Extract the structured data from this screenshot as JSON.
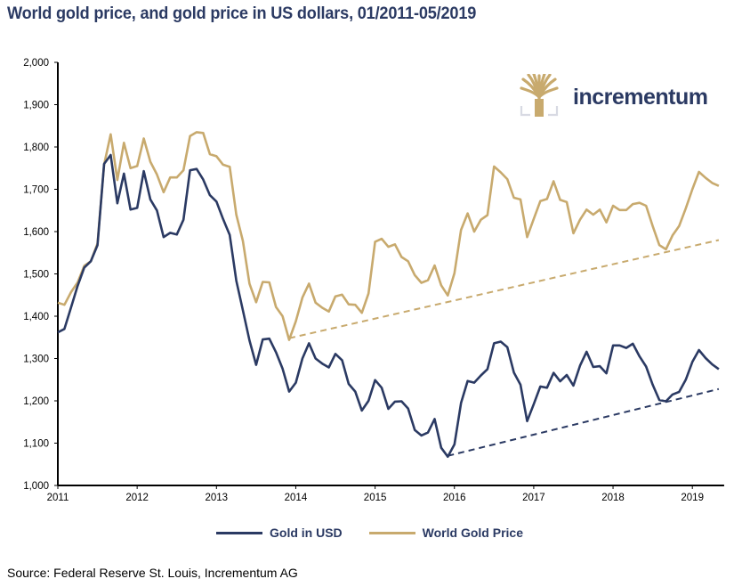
{
  "title": "World gold price, and gold price in US dollars, 01/2011-05/2019",
  "logo": {
    "text": "incrementum",
    "icon": "tree-icon"
  },
  "source": "Source: Federal Reserve St. Louis, Incrementum AG",
  "colors": {
    "usd": "#2b3a63",
    "world": "#c8aa6e",
    "title": "#2b3a63"
  },
  "chart_data": {
    "type": "line",
    "title": "World gold price, and gold price in US dollars, 01/2011-05/2019",
    "xlabel": "",
    "ylabel": "",
    "ylim": [
      1000,
      2000
    ],
    "yticks": [
      "1,000",
      "1,100",
      "1,200",
      "1,300",
      "1,400",
      "1,500",
      "1,600",
      "1,700",
      "1,800",
      "1,900",
      "2,000"
    ],
    "ytick_values": [
      1000,
      1100,
      1200,
      1300,
      1400,
      1500,
      1600,
      1700,
      1800,
      1900,
      2000
    ],
    "xticks": [
      "2011",
      "2012",
      "2013",
      "2014",
      "2015",
      "2016",
      "2017",
      "2018",
      "2019"
    ],
    "x_start": "2011-01",
    "x_end": "2019-05",
    "x_unit": "month",
    "grid": false,
    "legend_position": "bottom",
    "series": [
      {
        "name": "Gold in USD",
        "color": "#2b3a63",
        "values": [
          1362,
          1370,
          1421,
          1472,
          1515,
          1530,
          1568,
          1760,
          1781,
          1667,
          1737,
          1652,
          1656,
          1743,
          1676,
          1650,
          1587,
          1597,
          1593,
          1628,
          1745,
          1748,
          1723,
          1686,
          1671,
          1630,
          1592,
          1484,
          1414,
          1343,
          1285,
          1345,
          1347,
          1315,
          1276,
          1222,
          1243,
          1300,
          1336,
          1300,
          1288,
          1279,
          1311,
          1296,
          1240,
          1222,
          1177,
          1200,
          1249,
          1231,
          1181,
          1198,
          1199,
          1182,
          1131,
          1118,
          1125,
          1157,
          1089,
          1068,
          1097,
          1195,
          1247,
          1243,
          1260,
          1275,
          1336,
          1340,
          1327,
          1267,
          1238,
          1152,
          1192,
          1234,
          1231,
          1266,
          1246,
          1261,
          1236,
          1283,
          1316,
          1280,
          1282,
          1265,
          1331,
          1331,
          1325,
          1335,
          1305,
          1281,
          1238,
          1202,
          1199,
          1215,
          1221,
          1250,
          1292,
          1320,
          1301,
          1286,
          1275
        ]
      },
      {
        "name": "World Gold Price",
        "color": "#c8aa6e",
        "values": [
          1432,
          1427,
          1457,
          1480,
          1519,
          1530,
          1572,
          1758,
          1830,
          1722,
          1810,
          1750,
          1755,
          1820,
          1765,
          1735,
          1693,
          1728,
          1728,
          1745,
          1826,
          1835,
          1833,
          1783,
          1778,
          1758,
          1753,
          1640,
          1578,
          1477,
          1433,
          1481,
          1480,
          1422,
          1400,
          1344,
          1388,
          1444,
          1477,
          1432,
          1420,
          1411,
          1447,
          1451,
          1428,
          1427,
          1408,
          1454,
          1576,
          1583,
          1564,
          1570,
          1540,
          1530,
          1497,
          1479,
          1485,
          1520,
          1473,
          1449,
          1502,
          1604,
          1643,
          1600,
          1628,
          1639,
          1754,
          1740,
          1724,
          1680,
          1676,
          1587,
          1630,
          1672,
          1677,
          1719,
          1675,
          1670,
          1596,
          1628,
          1652,
          1640,
          1652,
          1622,
          1661,
          1651,
          1651,
          1665,
          1668,
          1661,
          1613,
          1568,
          1558,
          1591,
          1613,
          1655,
          1700,
          1741,
          1727,
          1715,
          1708
        ]
      }
    ],
    "trendlines": [
      {
        "series": "World Gold Price",
        "style": "dashed",
        "from": {
          "x": "2013-12",
          "y": 1348
        },
        "to": {
          "x": "2019-05",
          "y": 1580
        }
      },
      {
        "series": "Gold in USD",
        "style": "dashed",
        "from": {
          "x": "2015-12",
          "y": 1070
        },
        "to": {
          "x": "2019-05",
          "y": 1228
        }
      }
    ]
  }
}
